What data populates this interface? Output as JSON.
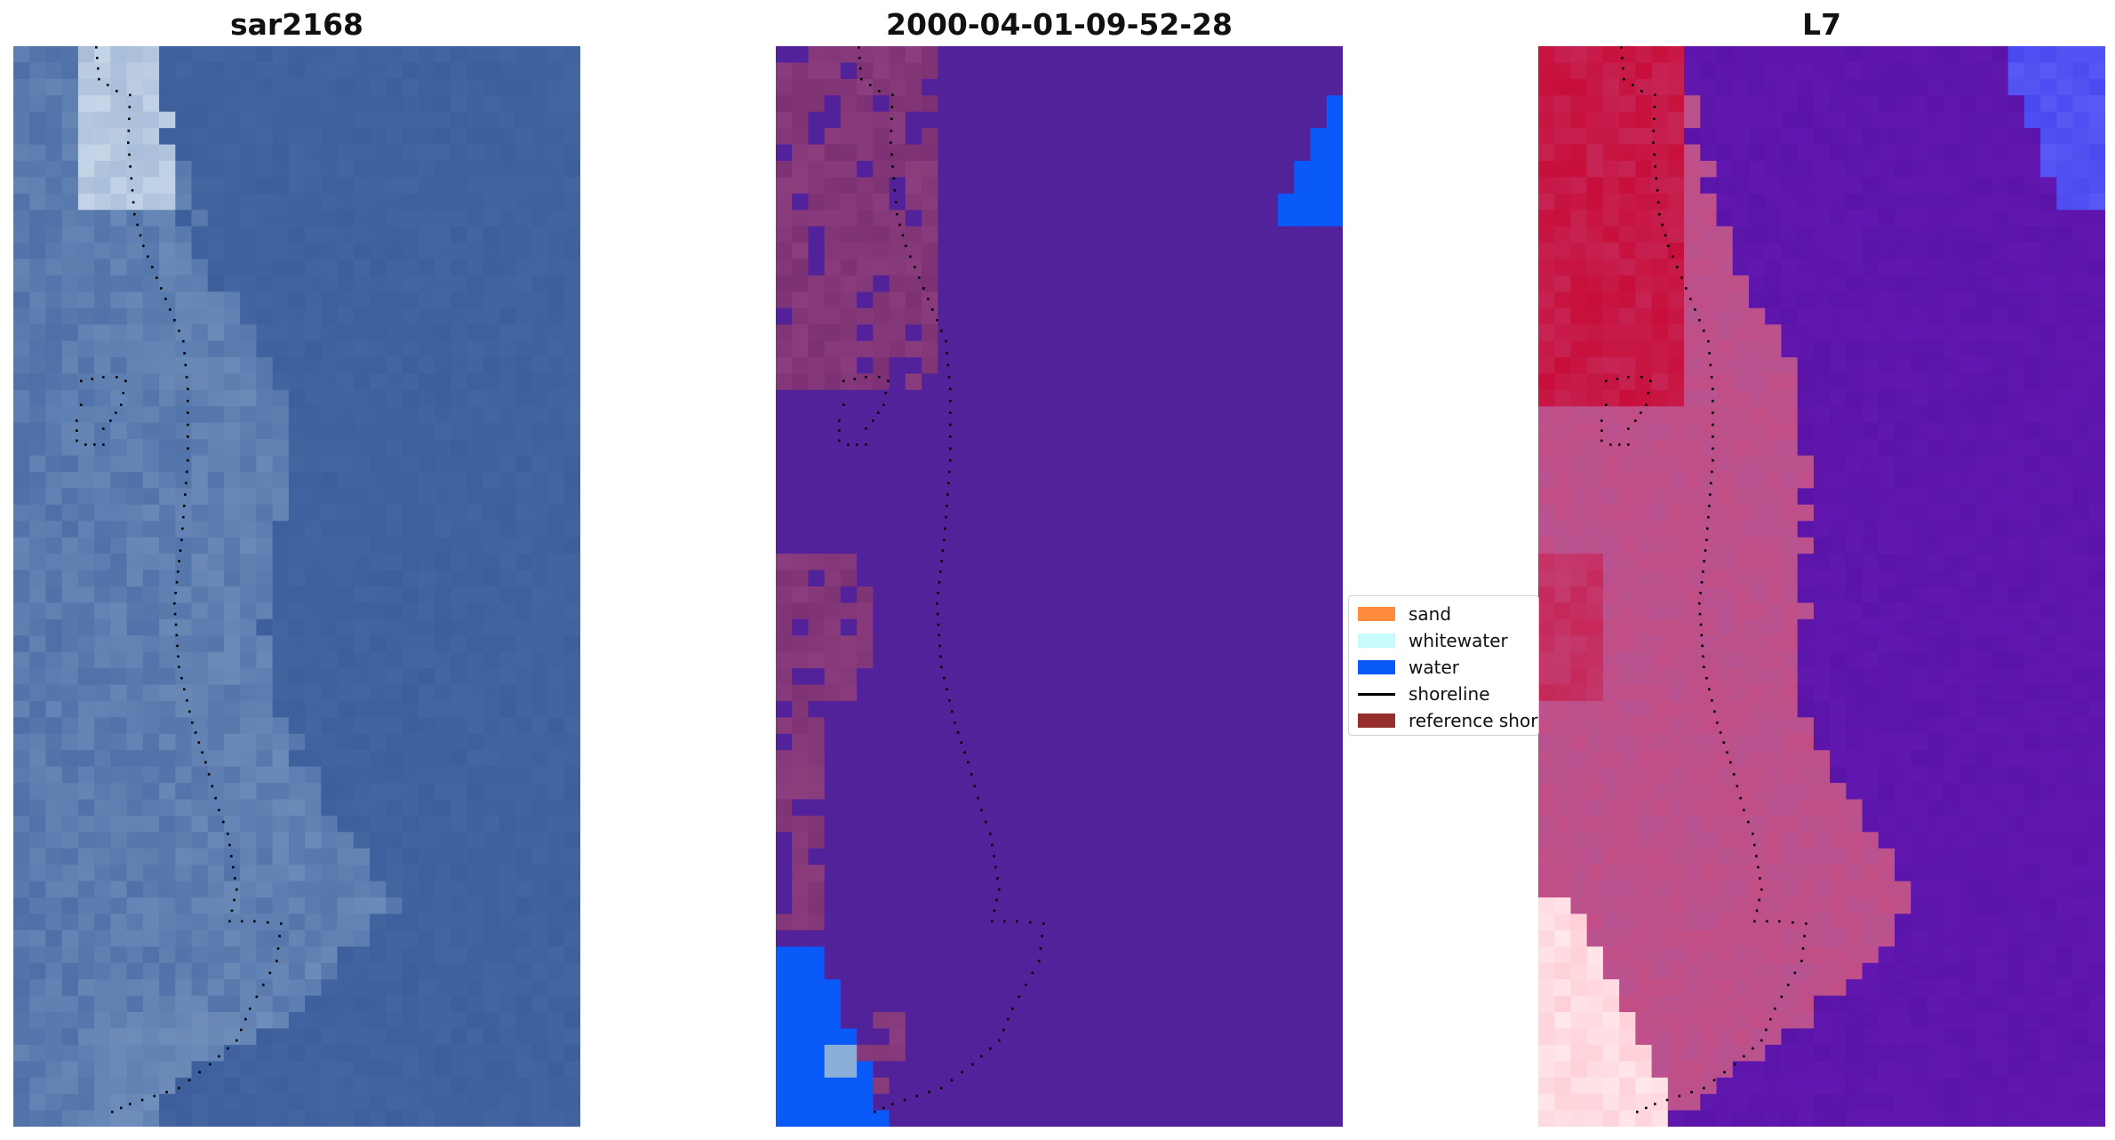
{
  "panels": [
    {
      "title": "sar2168",
      "style": "rgb"
    },
    {
      "title": "2000-04-01-09-52-28",
      "style": "classified"
    },
    {
      "title": "L7",
      "style": "index"
    }
  ],
  "legend": {
    "items": [
      {
        "label": "sand",
        "color": "#ff8c3c",
        "kind": "patch"
      },
      {
        "label": "whitewater",
        "color": "#c8fcfc",
        "kind": "patch"
      },
      {
        "label": "water",
        "color": "#0a5afa",
        "kind": "patch"
      },
      {
        "label": "shoreline",
        "color": "#000000",
        "kind": "line"
      },
      {
        "label": "reference shoreline",
        "color": "#962d2d",
        "kind": "patch"
      }
    ]
  },
  "colors": {
    "rgb_water": "#3d5f9c",
    "rgb_land": "#7d9cc4",
    "rgb_bright": "#dce8f4",
    "class_background": "#52229a",
    "class_land": "#7a2f72",
    "class_water": "#0a5afa",
    "index_water": "#5a14a8",
    "index_land": "#c24e86",
    "index_red": "#c80e3a",
    "index_blue": "#4848f0",
    "index_pink": "#ffd0d8",
    "shoreline_dots": "#000000"
  }
}
